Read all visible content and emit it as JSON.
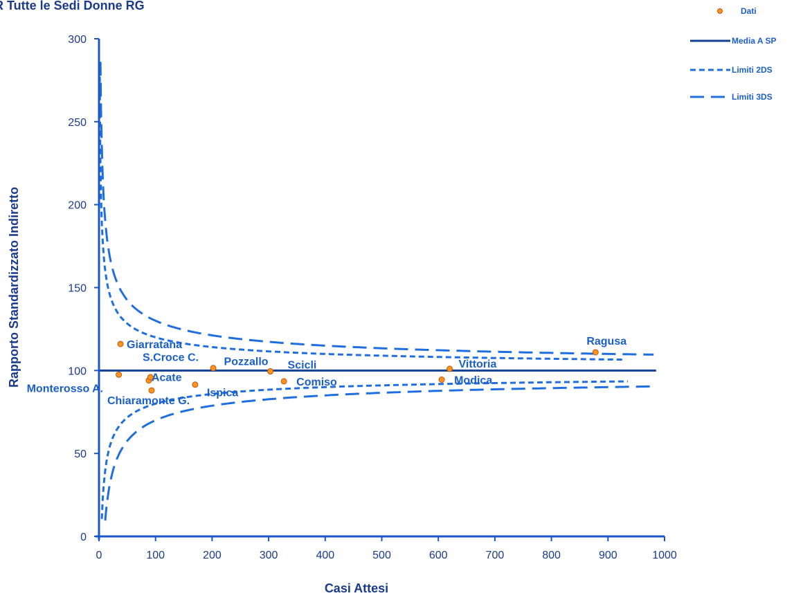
{
  "chart_data": {
    "type": "scatter",
    "title": "R Tutte le Sedi Donne RG",
    "xlabel": "Casi Attesi",
    "ylabel": "Rapporto Standardizzato Indiretto",
    "xlim": [
      0,
      1000
    ],
    "ylim": [
      0,
      300
    ],
    "xticks": [
      0,
      100,
      200,
      300,
      400,
      500,
      600,
      700,
      800,
      900,
      1000
    ],
    "yticks": [
      0,
      50,
      100,
      150,
      200,
      250,
      300
    ],
    "grid": false,
    "legend_position": "top-right",
    "colors": {
      "axis": "#1a56c8",
      "text": "#1a3a8c",
      "label": "#1a5fc8",
      "mean_line": "#123f8f",
      "limits": "#1f6ee0",
      "point_fill": "#f7941d",
      "point_stroke": "#c0581a",
      "highlight": "#f05a1e"
    },
    "legend": [
      {
        "label": "Dati",
        "style": "marker"
      },
      {
        "label": "Media A SP",
        "style": "solid"
      },
      {
        "label": "Limiti 2DS",
        "style": "short-dash"
      },
      {
        "label": "Limiti 3DS",
        "style": "long-dash"
      }
    ],
    "mean": 100,
    "limit_curves": {
      "x_max_2ds": 935,
      "x_max_3ds": 985
    },
    "points": [
      {
        "label": "Monterosso A.",
        "x": 35,
        "y": 97.5
      },
      {
        "label": "Giarratana",
        "x": 38,
        "y": 116
      },
      {
        "label": "Acate",
        "x": 88,
        "y": 94
      },
      {
        "label": "Chiaramonte G.",
        "x": 93,
        "y": 88
      },
      {
        "label": "",
        "x": 91,
        "y": 96
      },
      {
        "label": "Ispica",
        "x": 170,
        "y": 91.5
      },
      {
        "label": "S.Croce C.",
        "x": 202,
        "y": 101.5
      },
      {
        "label": "Pozzallo",
        "x": 303,
        "y": 99.5
      },
      {
        "label": "Scicli",
        "x": 303,
        "y": 99.5
      },
      {
        "label": "Comiso",
        "x": 327,
        "y": 93.5
      },
      {
        "label": "Modica",
        "x": 606,
        "y": 94.5
      },
      {
        "label": "Vittoria",
        "x": 620,
        "y": 101
      },
      {
        "label": "Ragusa",
        "x": 878,
        "y": 111,
        "highlight": true
      }
    ]
  }
}
